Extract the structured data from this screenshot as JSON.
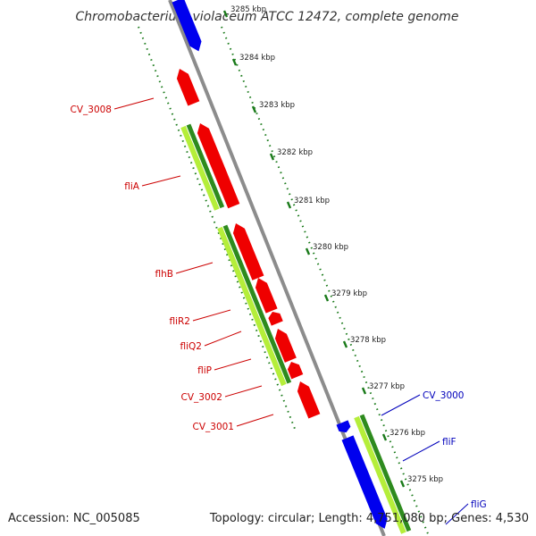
{
  "title": "Chromobacterium violaceum ATCC 12472, complete genome",
  "footer": {
    "accession": "Accession: NC_005085",
    "topology": "Topology: circular; Length: 4,751,080 bp; Genes: 4,530"
  },
  "colors": {
    "forward_cds": "#ef0000",
    "reverse_cds": "#0000ee",
    "gc_light": "#b5ee3a",
    "gc_dark": "#2e8b1e",
    "backbone": "#8c8c8c",
    "scale_ticks": "#1a7a1a",
    "forward_label": "#cc0000",
    "reverse_label": "#0000bb"
  },
  "scale_ticks": [
    "3285 kbp",
    "3284 kbp",
    "3283 kbp",
    "3282 kbp",
    "3281 kbp",
    "3280 kbp",
    "3279 kbp",
    "3278 kbp",
    "3277 kbp",
    "3276 kbp",
    "3275 kbp"
  ],
  "forward_genes": [
    "CV_3008",
    "fliA",
    "flhB",
    "fliR2",
    "fliQ2",
    "fliP",
    "CV_3002",
    "CV_3001"
  ],
  "reverse_genes": [
    "CV_3000",
    "fliF",
    "fliG"
  ]
}
